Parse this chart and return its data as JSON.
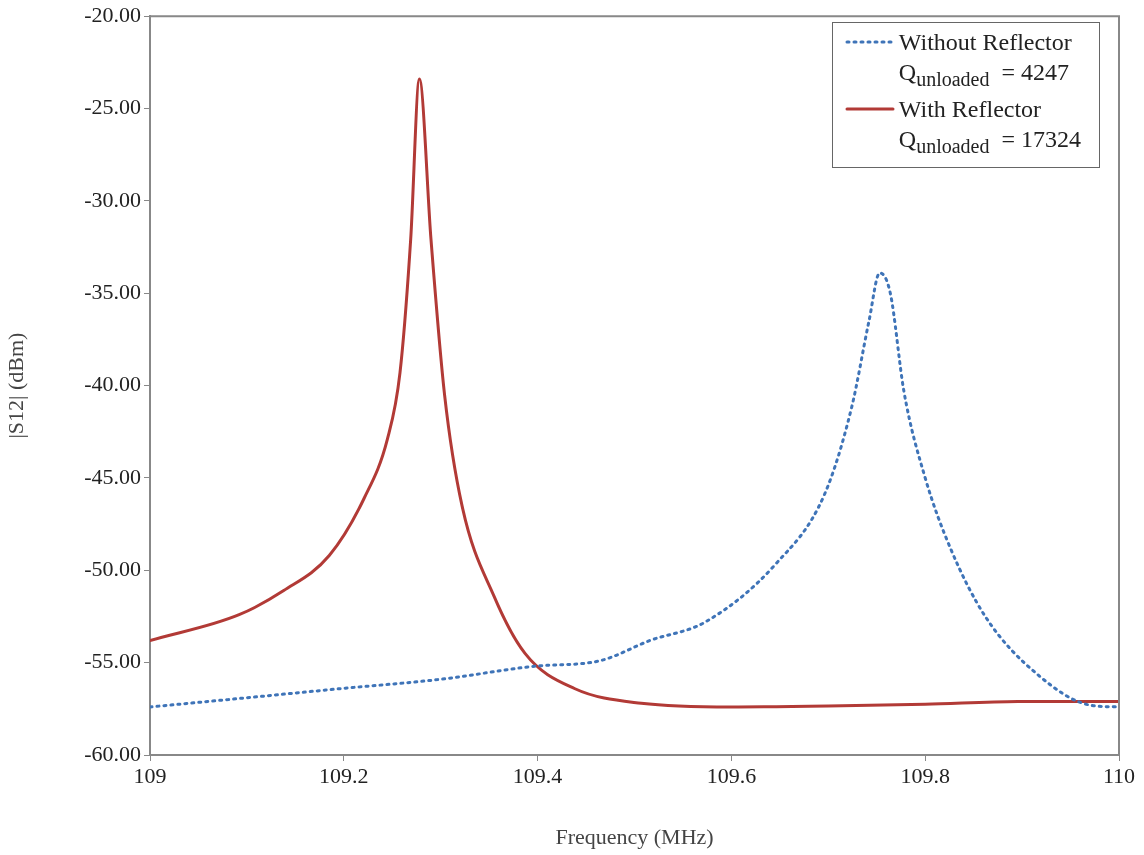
{
  "chart_data": {
    "type": "line",
    "xlabel": "Frequency (MHz)",
    "ylabel": "|S12| (dBm)",
    "xlim": [
      109,
      110
    ],
    "xticks": [
      109,
      109.2,
      109.4,
      109.6,
      109.8,
      110
    ],
    "ylim": [
      -60,
      -20
    ],
    "yticks": [
      {
        "value": -60,
        "label": "-60.00"
      },
      {
        "value": -55,
        "label": "-55.00"
      },
      {
        "value": -50,
        "label": "-50.00"
      },
      {
        "value": -45,
        "label": "-45.00"
      },
      {
        "value": -40,
        "label": "-40.00"
      },
      {
        "value": -35,
        "label": "-35.00"
      },
      {
        "value": -30,
        "label": "-30.00"
      },
      {
        "value": -25,
        "label": "-25.00"
      },
      {
        "value": -20,
        "label": "-20.00"
      }
    ],
    "grid": false,
    "legend": "top right",
    "marker": "none",
    "annotations": [
      "Q$_{unloaded}$  = 4247",
      "Q$_{unloaded}$  = 17324"
    ],
    "series": [
      {
        "name": "Without Reflector",
        "color": "#3f74b8",
        "line_style": "dotted",
        "x": [
          109,
          109.1,
          109.198,
          109.3,
          109.396,
          109.464,
          109.516,
          109.573,
          109.645,
          109.696,
          109.724,
          109.742,
          109.753,
          109.764,
          109.778,
          109.8,
          109.826,
          109.862,
          109.915,
          109.97,
          110
        ],
        "values": [
          -57.4,
          -56.9,
          -56.4,
          -55.9,
          -55.2,
          -54.9,
          -53.8,
          -52.8,
          -49.7,
          -45.9,
          -41.2,
          -36.5,
          -33.9,
          -35,
          -40.3,
          -45,
          -48.8,
          -52.5,
          -55.6,
          -57.3,
          -57.4
        ]
      },
      {
        "name": "With Reflector",
        "color": "#b23a36",
        "line_style": "solid",
        "x": [
          109,
          109.092,
          109.138,
          109.185,
          109.221,
          109.245,
          109.258,
          109.269,
          109.278,
          109.29,
          109.304,
          109.322,
          109.355,
          109.387,
          109.438,
          109.507,
          109.6,
          109.7,
          109.8,
          109.9,
          110
        ],
        "values": [
          -53.8,
          -52.4,
          -51.1,
          -49.2,
          -46.1,
          -42.9,
          -39.3,
          -32.1,
          -23.4,
          -32.1,
          -40.5,
          -46.5,
          -51.4,
          -54.5,
          -56.4,
          -57.2,
          -57.4,
          -57.35,
          -57.25,
          -57.1,
          -57.1
        ]
      }
    ]
  }
}
